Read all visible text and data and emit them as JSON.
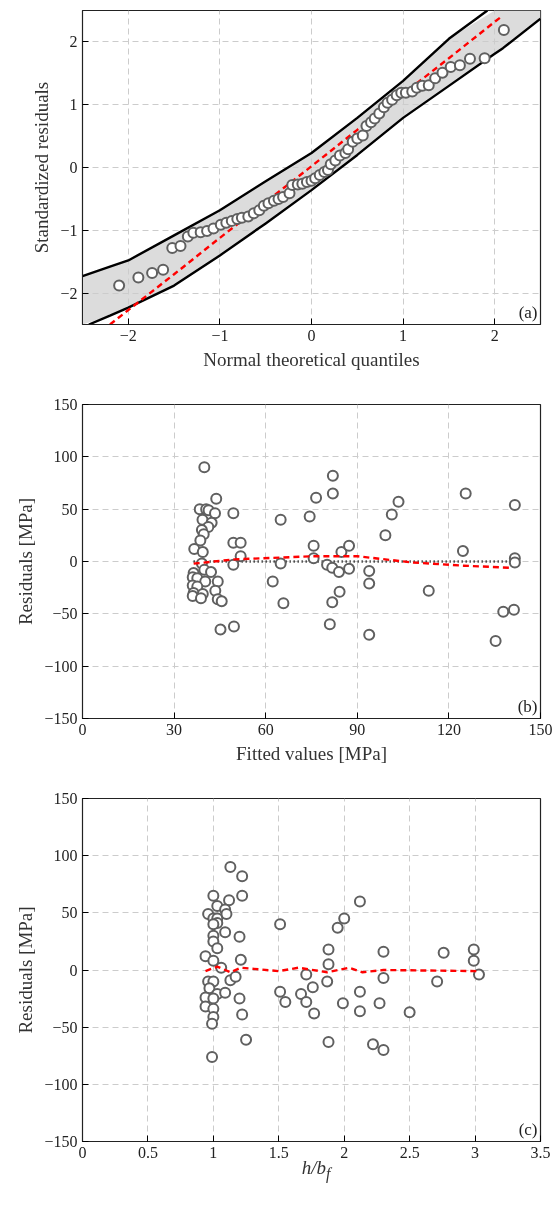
{
  "chart_data": [
    {
      "type": "scatter",
      "xlabel": "Normal theoretical quantiles",
      "ylabel": "Standardized residuals",
      "annotations": [
        "(a)"
      ],
      "xlim": [
        -2.5,
        2.5
      ],
      "ylim": [
        -2.5,
        2.5
      ],
      "xticks": [
        -2,
        -1,
        0,
        1,
        2
      ],
      "yticks": [
        -2,
        -1,
        0,
        1,
        2
      ],
      "grid": true,
      "series": [
        {
          "type": "line",
          "color": "#000000",
          "line_style": "solid",
          "x": [
            -2.5,
            -2.2,
            -2,
            -1.5,
            -1,
            -0.5,
            0,
            0.5,
            1,
            1.5,
            1.92
          ],
          "values": [
            -1.73,
            -1.58,
            -1.48,
            -1.08,
            -0.68,
            -0.22,
            0.23,
            0.79,
            1.38,
            2.05,
            2.5
          ]
        },
        {
          "type": "line",
          "color": "#000000",
          "line_style": "solid",
          "x": [
            -2.43,
            -2.2,
            -2,
            -1.5,
            -1,
            -0.5,
            0,
            0.5,
            1,
            1.5,
            2,
            2.09,
            2.5
          ],
          "values": [
            -2.5,
            -2.36,
            -2.23,
            -1.88,
            -1.4,
            -0.89,
            -0.36,
            0.2,
            0.79,
            1.3,
            1.81,
            1.9,
            2.37
          ]
        },
        {
          "type": "line",
          "color": "#ff0000",
          "line_style": "dashed",
          "x": [
            -2.5,
            -2.2,
            -2,
            -1.5,
            -1,
            -0.5,
            0,
            0.5,
            1,
            1.5,
            2,
            2.09,
            2.5
          ],
          "values": [
            null,
            -2.5,
            -2.27,
            -1.7,
            -1.12,
            -0.55,
            0.02,
            0.6,
            1.17,
            1.74,
            2.32,
            2.42,
            null
          ],
          "lower": [
            -2.5,
            -2.36,
            -2.23,
            -1.88,
            -1.4,
            -0.89,
            -0.36,
            0.2,
            0.79,
            1.3,
            1.81,
            1.9,
            2.37
          ],
          "upper": [
            -1.73,
            -1.58,
            -1.48,
            -1.08,
            -0.68,
            -0.22,
            0.23,
            0.79,
            1.38,
            2.05,
            2.5,
            2.5,
            2.5
          ]
        },
        {
          "marker": "circle",
          "color": "#606060",
          "x": [
            -2.1,
            -1.89,
            -1.74,
            -1.62,
            -1.52,
            -1.43,
            -1.35,
            -1.29,
            -1.21,
            -1.14,
            -1.07,
            -0.99,
            -0.93,
            -0.87,
            -0.81,
            -0.76,
            -0.69,
            -0.63,
            -0.57,
            -0.52,
            -0.47,
            -0.41,
            -0.36,
            -0.31,
            -0.24,
            -0.21,
            -0.15,
            -0.1,
            -0.05,
            0.0,
            0.04,
            0.09,
            0.14,
            0.18,
            0.21,
            0.26,
            0.31,
            0.37,
            0.4,
            0.45,
            0.5,
            0.56,
            0.6,
            0.65,
            0.69,
            0.74,
            0.79,
            0.83,
            0.88,
            0.93,
            0.98,
            1.03,
            1.1,
            1.15,
            1.21,
            1.28,
            1.35,
            1.43,
            1.52,
            1.62,
            1.73,
            1.89,
            2.1
          ],
          "values": [
            -1.88,
            -1.75,
            -1.68,
            -1.63,
            -1.28,
            -1.25,
            -1.1,
            -1.04,
            -1.03,
            -1.01,
            -0.97,
            -0.91,
            -0.88,
            -0.85,
            -0.82,
            -0.8,
            -0.78,
            -0.73,
            -0.68,
            -0.61,
            -0.57,
            -0.53,
            -0.5,
            -0.47,
            -0.41,
            -0.28,
            -0.27,
            -0.26,
            -0.23,
            -0.21,
            -0.17,
            -0.12,
            -0.07,
            -0.04,
            0.05,
            0.11,
            0.19,
            0.23,
            0.29,
            0.41,
            0.46,
            0.51,
            0.66,
            0.72,
            0.78,
            0.86,
            0.96,
            1.03,
            1.08,
            1.15,
            1.19,
            1.19,
            1.21,
            1.27,
            1.3,
            1.31,
            1.42,
            1.51,
            1.6,
            1.63,
            1.73,
            1.74,
            2.19
          ]
        }
      ]
    },
    {
      "type": "scatter",
      "xlabel": "Fitted values [MPa]",
      "ylabel": "Residuals [MPa]",
      "annotations": [
        "(b)"
      ],
      "xlim": [
        0,
        150
      ],
      "ylim": [
        -150,
        150
      ],
      "xticks": [
        0,
        30,
        60,
        90,
        120,
        150
      ],
      "yticks": [
        -150,
        -100,
        -50,
        0,
        50,
        100,
        150
      ],
      "grid": true,
      "series": [
        {
          "type": "line",
          "color": "#000000",
          "line_style": "dotted",
          "x": [
            36.4,
            141.6
          ],
          "values": [
            0,
            0
          ]
        },
        {
          "marker": "circle",
          "color": "#606060",
          "x": [
            39.9,
            43.8,
            38.4,
            40.5,
            41.3,
            43.4,
            49.4,
            39.3,
            42.3,
            41.2,
            39.1,
            39.7,
            38.6,
            49.4,
            51.8,
            36.6,
            39.4,
            51.8,
            39.1,
            49.4,
            39.9,
            42.1,
            36.4,
            36.1,
            37.6,
            40.2,
            44.3,
            36.1,
            37.6,
            43.5,
            36.4,
            39.4,
            36.1,
            38.8,
            44.3,
            45.6,
            45.2,
            49.6,
            64.9,
            62.3,
            64.9,
            65.8,
            74.4,
            76.5,
            75.7,
            75.7,
            82.0,
            82.0,
            80.1,
            81.8,
            84.0,
            84.8,
            87.3,
            87.3,
            84.2,
            81.8,
            81.0,
            93.9,
            93.9,
            93.9,
            99.2,
            101.3,
            103.5,
            113.4,
            125.5,
            124.6,
            141.6,
            141.6,
            141.6,
            141.3,
            137.8,
            135.3
          ],
          "values": [
            90,
            60,
            50,
            50,
            49,
            46,
            46,
            40,
            37,
            33,
            30,
            26,
            20,
            18,
            18,
            12,
            9,
            5,
            -2,
            -3,
            -8,
            -10,
            -11,
            -15,
            -16,
            -19,
            -19,
            -23,
            -24,
            -28,
            -30,
            -31,
            -33,
            -35,
            -36,
            -38,
            -65,
            -62,
            40,
            -19,
            -2,
            -40,
            43,
            61,
            15,
            3,
            82,
            65,
            -3,
            -6,
            -10,
            9,
            15,
            -7,
            -29,
            -39,
            -60,
            -9,
            -21,
            -70,
            25,
            45,
            57,
            -28,
            65,
            10,
            54,
            3,
            -1,
            -46,
            -48,
            -76
          ]
        },
        {
          "type": "line",
          "color": "#ff0000",
          "line_style": "dashed",
          "x": [
            36.4,
            49.8,
            75.2,
            90.1,
            108.3,
            124.8,
            140.2
          ],
          "values": [
            -2,
            2,
            5,
            5,
            -1,
            -4,
            -6
          ]
        }
      ]
    },
    {
      "type": "scatter",
      "xlabel": "h/b$_{f}$",
      "ylabel": "Residuals [MPa]",
      "annotations": [
        "(c)"
      ],
      "xlim": [
        0,
        3.5
      ],
      "ylim": [
        -150,
        150
      ],
      "xticks": [
        0,
        0.5,
        1,
        1.5,
        2,
        2.5,
        3,
        3.5
      ],
      "yticks": [
        -150,
        -100,
        -50,
        0,
        50,
        100,
        150
      ],
      "grid": true,
      "series": [
        {
          "marker": "circle",
          "color": "#606060",
          "x": [
            1.13,
            1.22,
            1.0,
            1.22,
            1.12,
            1.03,
            1.09,
            0.96,
            1.1,
            1.0,
            1.03,
            1.03,
            1.0,
            1.09,
            1.2,
            1.0,
            1.0,
            1.03,
            0.94,
            1.21,
            1.0,
            1.06,
            0.96,
            1.0,
            1.13,
            1.17,
            0.97,
            1.03,
            1.09,
            0.94,
            1.0,
            1.2,
            0.94,
            1.0,
            1.0,
            0.99,
            1.22,
            1.25,
            0.99,
            1.51,
            1.51,
            1.55,
            1.67,
            1.71,
            1.76,
            1.71,
            1.77,
            1.88,
            1.88,
            1.87,
            1.88,
            1.95,
            2.0,
            2.12,
            1.99,
            2.12,
            2.12,
            2.3,
            2.3,
            2.27,
            2.22,
            2.3,
            2.5,
            2.76,
            2.71,
            2.99,
            2.99,
            3.03
          ],
          "values": [
            90,
            82,
            65,
            65,
            61,
            56,
            53,
            49,
            49,
            45,
            45,
            41,
            40,
            33,
            29,
            30,
            25,
            19,
            12,
            9,
            8,
            2,
            -10,
            -10,
            -9,
            -6,
            -16,
            -21,
            -20,
            -24,
            -25,
            -25,
            -32,
            -34,
            -41,
            -47,
            -39,
            -61,
            -76,
            40,
            -19,
            -28,
            -21,
            -4,
            -15,
            -28,
            -38,
            18,
            5,
            -10,
            -63,
            37,
            45,
            60,
            -29,
            -19,
            -36,
            16,
            -7,
            -29,
            -65,
            -70,
            -37,
            15,
            -10,
            18,
            8,
            -4
          ]
        },
        {
          "type": "line",
          "color": "#ff0000",
          "line_style": "dashed",
          "x": [
            0.94,
            1.03,
            1.13,
            1.21,
            1.5,
            1.65,
            1.87,
            2.04,
            2.14,
            2.3,
            3.04
          ],
          "values": [
            -1,
            3,
            -2,
            2,
            -1,
            2,
            -2,
            2,
            -2,
            0,
            -1
          ]
        }
      ]
    }
  ]
}
